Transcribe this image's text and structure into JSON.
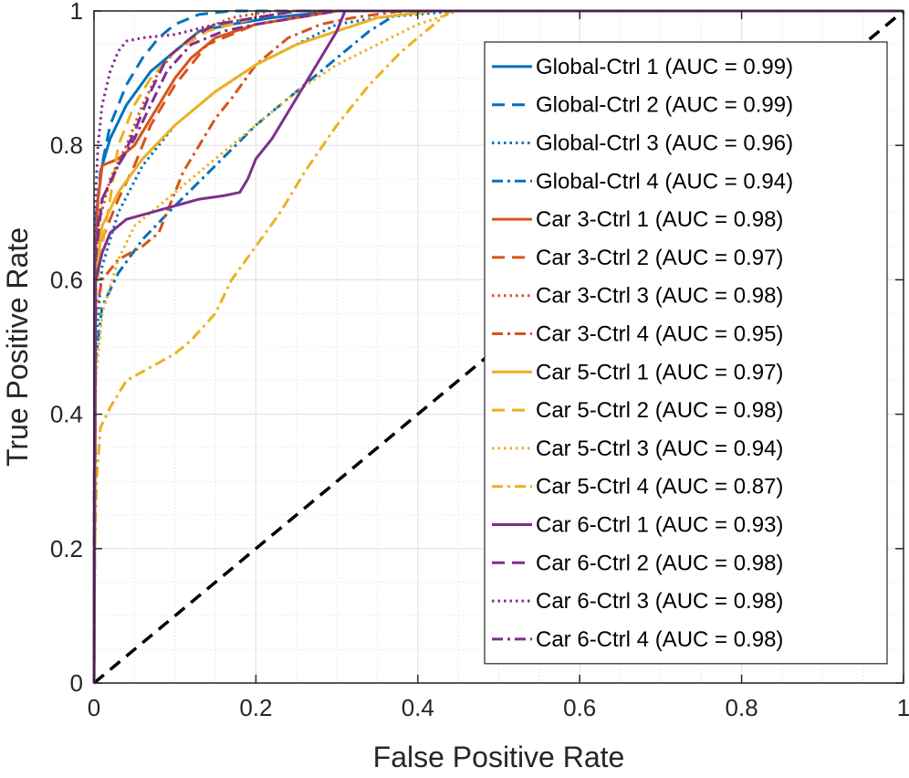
{
  "chart_data": {
    "type": "line",
    "title": "",
    "xlabel": "False Positive Rate",
    "ylabel": "True Positive Rate",
    "xlim": [
      0,
      1
    ],
    "ylim": [
      0,
      1
    ],
    "xticks": [
      0,
      0.2,
      0.4,
      0.6,
      0.8,
      1
    ],
    "xtick_labels": [
      "0",
      "0.2",
      "0.4",
      "0.6",
      "0.8",
      "1"
    ],
    "yticks": [
      0,
      0.2,
      0.4,
      0.6,
      0.8,
      1
    ],
    "ytick_labels": [
      "0",
      "0.2",
      "0.4",
      "0.6",
      "0.8",
      "1"
    ],
    "grid": true,
    "minor_grid": true,
    "legend_position": "top-right",
    "reference_line": {
      "name": "chance",
      "color": "#000000",
      "style": "dash",
      "points": [
        [
          0,
          0
        ],
        [
          1,
          1
        ]
      ]
    },
    "series": [
      {
        "name": "Global-Ctrl 1 (AUC = 0.99)",
        "color": "#0072BD",
        "style": "solid",
        "points": [
          [
            0,
            0
          ],
          [
            0.001,
            0.6
          ],
          [
            0.003,
            0.7
          ],
          [
            0.01,
            0.77
          ],
          [
            0.02,
            0.81
          ],
          [
            0.04,
            0.86
          ],
          [
            0.07,
            0.91
          ],
          [
            0.1,
            0.94
          ],
          [
            0.13,
            0.97
          ],
          [
            0.17,
            0.98
          ],
          [
            0.22,
            0.99
          ],
          [
            0.3,
            1.0
          ],
          [
            1,
            1
          ]
        ]
      },
      {
        "name": "Global-Ctrl 2 (AUC = 0.99)",
        "color": "#0072BD",
        "style": "dash",
        "points": [
          [
            0,
            0
          ],
          [
            0.001,
            0.6
          ],
          [
            0.003,
            0.7
          ],
          [
            0.008,
            0.76
          ],
          [
            0.02,
            0.83
          ],
          [
            0.04,
            0.89
          ],
          [
            0.06,
            0.93
          ],
          [
            0.08,
            0.96
          ],
          [
            0.1,
            0.98
          ],
          [
            0.13,
            0.995
          ],
          [
            0.17,
            1.0
          ],
          [
            1,
            1
          ]
        ]
      },
      {
        "name": "Global-Ctrl 3 (AUC = 0.96)",
        "color": "#0072BD",
        "style": "dot",
        "points": [
          [
            0,
            0
          ],
          [
            0.002,
            0.5
          ],
          [
            0.01,
            0.62
          ],
          [
            0.03,
            0.7
          ],
          [
            0.06,
            0.77
          ],
          [
            0.1,
            0.83
          ],
          [
            0.15,
            0.88
          ],
          [
            0.2,
            0.92
          ],
          [
            0.25,
            0.95
          ],
          [
            0.3,
            0.98
          ],
          [
            0.35,
            0.99
          ],
          [
            0.45,
            1.0
          ],
          [
            1,
            1
          ]
        ]
      },
      {
        "name": "Global-Ctrl 4 (AUC = 0.94)",
        "color": "#0072BD",
        "style": "dashdot",
        "points": [
          [
            0,
            0
          ],
          [
            0.002,
            0.48
          ],
          [
            0.01,
            0.56
          ],
          [
            0.03,
            0.61
          ],
          [
            0.06,
            0.66
          ],
          [
            0.1,
            0.71
          ],
          [
            0.15,
            0.77
          ],
          [
            0.2,
            0.83
          ],
          [
            0.25,
            0.88
          ],
          [
            0.3,
            0.93
          ],
          [
            0.34,
            0.97
          ],
          [
            0.38,
            1.0
          ],
          [
            1,
            1
          ]
        ]
      },
      {
        "name": "Car 3-Ctrl 1 (AUC = 0.98)",
        "color": "#D95319",
        "style": "solid",
        "points": [
          [
            0,
            0
          ],
          [
            0.001,
            0.62
          ],
          [
            0.005,
            0.72
          ],
          [
            0.01,
            0.77
          ],
          [
            0.03,
            0.78
          ],
          [
            0.05,
            0.8
          ],
          [
            0.08,
            0.86
          ],
          [
            0.1,
            0.9
          ],
          [
            0.12,
            0.93
          ],
          [
            0.15,
            0.96
          ],
          [
            0.2,
            0.98
          ],
          [
            0.25,
            0.99
          ],
          [
            0.3,
            1.0
          ],
          [
            1,
            1
          ]
        ]
      },
      {
        "name": "Car 3-Ctrl 2 (AUC = 0.97)",
        "color": "#D95319",
        "style": "dash",
        "points": [
          [
            0,
            0
          ],
          [
            0.002,
            0.6
          ],
          [
            0.01,
            0.66
          ],
          [
            0.03,
            0.72
          ],
          [
            0.05,
            0.77
          ],
          [
            0.07,
            0.83
          ],
          [
            0.1,
            0.89
          ],
          [
            0.14,
            0.95
          ],
          [
            0.2,
            0.98
          ],
          [
            0.25,
            0.99
          ],
          [
            0.3,
            1.0
          ],
          [
            1,
            1
          ]
        ]
      },
      {
        "name": "Car 3-Ctrl 3 (AUC = 0.98)",
        "color": "#D95319",
        "style": "dot",
        "points": [
          [
            0,
            0
          ],
          [
            0.001,
            0.58
          ],
          [
            0.005,
            0.68
          ],
          [
            0.02,
            0.75
          ],
          [
            0.04,
            0.8
          ],
          [
            0.06,
            0.86
          ],
          [
            0.08,
            0.91
          ],
          [
            0.1,
            0.94
          ],
          [
            0.13,
            0.97
          ],
          [
            0.17,
            0.99
          ],
          [
            0.22,
            1.0
          ],
          [
            1,
            1
          ]
        ]
      },
      {
        "name": "Car 3-Ctrl 4 (AUC = 0.95)",
        "color": "#D95319",
        "style": "dashdot",
        "points": [
          [
            0,
            0
          ],
          [
            0.002,
            0.55
          ],
          [
            0.01,
            0.6
          ],
          [
            0.03,
            0.63
          ],
          [
            0.06,
            0.65
          ],
          [
            0.08,
            0.67
          ],
          [
            0.09,
            0.7
          ],
          [
            0.11,
            0.76
          ],
          [
            0.13,
            0.8
          ],
          [
            0.15,
            0.84
          ],
          [
            0.17,
            0.87
          ],
          [
            0.2,
            0.92
          ],
          [
            0.24,
            0.96
          ],
          [
            0.28,
            0.98
          ],
          [
            0.32,
            0.99
          ],
          [
            0.38,
            1.0
          ],
          [
            1,
            1
          ]
        ]
      },
      {
        "name": "Car 5-Ctrl 1 (AUC = 0.97)",
        "color": "#EDB120",
        "style": "solid",
        "points": [
          [
            0,
            0
          ],
          [
            0.002,
            0.6
          ],
          [
            0.01,
            0.68
          ],
          [
            0.03,
            0.73
          ],
          [
            0.06,
            0.78
          ],
          [
            0.1,
            0.83
          ],
          [
            0.15,
            0.88
          ],
          [
            0.2,
            0.92
          ],
          [
            0.25,
            0.95
          ],
          [
            0.3,
            0.97
          ],
          [
            0.35,
            0.99
          ],
          [
            0.42,
            1.0
          ],
          [
            1,
            1
          ]
        ]
      },
      {
        "name": "Car 5-Ctrl 2 (AUC = 0.98)",
        "color": "#EDB120",
        "style": "dash",
        "points": [
          [
            0,
            0
          ],
          [
            0.002,
            0.58
          ],
          [
            0.01,
            0.65
          ],
          [
            0.02,
            0.72
          ],
          [
            0.03,
            0.8
          ],
          [
            0.05,
            0.86
          ],
          [
            0.07,
            0.9
          ],
          [
            0.1,
            0.94
          ],
          [
            0.14,
            0.97
          ],
          [
            0.2,
            0.99
          ],
          [
            0.25,
            1.0
          ],
          [
            1,
            1
          ]
        ]
      },
      {
        "name": "Car 5-Ctrl 3 (AUC = 0.94)",
        "color": "#EDB120",
        "style": "dot",
        "points": [
          [
            0,
            0
          ],
          [
            0.002,
            0.45
          ],
          [
            0.01,
            0.55
          ],
          [
            0.03,
            0.63
          ],
          [
            0.05,
            0.68
          ],
          [
            0.08,
            0.71
          ],
          [
            0.12,
            0.75
          ],
          [
            0.16,
            0.79
          ],
          [
            0.2,
            0.83
          ],
          [
            0.25,
            0.88
          ],
          [
            0.3,
            0.92
          ],
          [
            0.35,
            0.95
          ],
          [
            0.4,
            0.98
          ],
          [
            0.45,
            1.0
          ],
          [
            1,
            1
          ]
        ]
      },
      {
        "name": "Car 5-Ctrl 4 (AUC = 0.87)",
        "color": "#EDB120",
        "style": "dashdot",
        "points": [
          [
            0,
            0
          ],
          [
            0.001,
            0.2
          ],
          [
            0.003,
            0.3
          ],
          [
            0.008,
            0.38
          ],
          [
            0.02,
            0.41
          ],
          [
            0.04,
            0.45
          ],
          [
            0.07,
            0.47
          ],
          [
            0.1,
            0.49
          ],
          [
            0.12,
            0.51
          ],
          [
            0.15,
            0.55
          ],
          [
            0.17,
            0.6
          ],
          [
            0.2,
            0.65
          ],
          [
            0.23,
            0.7
          ],
          [
            0.26,
            0.76
          ],
          [
            0.3,
            0.83
          ],
          [
            0.34,
            0.89
          ],
          [
            0.38,
            0.94
          ],
          [
            0.42,
            0.98
          ],
          [
            0.44,
            1.0
          ],
          [
            1,
            1
          ]
        ]
      },
      {
        "name": "Car 6-Ctrl 1 (AUC = 0.93)",
        "color": "#7E2F8E",
        "style": "solid",
        "points": [
          [
            0,
            0
          ],
          [
            0.002,
            0.6
          ],
          [
            0.01,
            0.64
          ],
          [
            0.02,
            0.67
          ],
          [
            0.04,
            0.69
          ],
          [
            0.07,
            0.7
          ],
          [
            0.1,
            0.71
          ],
          [
            0.13,
            0.72
          ],
          [
            0.16,
            0.725
          ],
          [
            0.18,
            0.73
          ],
          [
            0.19,
            0.75
          ],
          [
            0.2,
            0.78
          ],
          [
            0.22,
            0.81
          ],
          [
            0.24,
            0.85
          ],
          [
            0.26,
            0.89
          ],
          [
            0.28,
            0.93
          ],
          [
            0.3,
            0.97
          ],
          [
            0.31,
            1.0
          ],
          [
            1,
            1
          ]
        ]
      },
      {
        "name": "Car 6-Ctrl 2 (AUC = 0.98)",
        "color": "#7E2F8E",
        "style": "dash",
        "points": [
          [
            0,
            0
          ],
          [
            0.001,
            0.62
          ],
          [
            0.01,
            0.72
          ],
          [
            0.03,
            0.77
          ],
          [
            0.05,
            0.82
          ],
          [
            0.07,
            0.88
          ],
          [
            0.09,
            0.93
          ],
          [
            0.12,
            0.96
          ],
          [
            0.15,
            0.98
          ],
          [
            0.2,
            0.99
          ],
          [
            0.25,
            1.0
          ],
          [
            1,
            1
          ]
        ]
      },
      {
        "name": "Car 6-Ctrl 3 (AUC = 0.98)",
        "color": "#7E2F8E",
        "style": "dot",
        "points": [
          [
            0,
            0
          ],
          [
            0.001,
            0.7
          ],
          [
            0.005,
            0.8
          ],
          [
            0.01,
            0.86
          ],
          [
            0.02,
            0.91
          ],
          [
            0.03,
            0.94
          ],
          [
            0.04,
            0.955
          ],
          [
            0.06,
            0.96
          ],
          [
            0.1,
            0.965
          ],
          [
            0.15,
            0.98
          ],
          [
            0.2,
            0.99
          ],
          [
            0.25,
            1.0
          ],
          [
            1,
            1
          ]
        ]
      },
      {
        "name": "Car 6-Ctrl 4 (AUC = 0.98)",
        "color": "#7E2F8E",
        "style": "dashdot",
        "points": [
          [
            0,
            0
          ],
          [
            0.001,
            0.65
          ],
          [
            0.01,
            0.72
          ],
          [
            0.03,
            0.77
          ],
          [
            0.05,
            0.81
          ],
          [
            0.07,
            0.86
          ],
          [
            0.09,
            0.91
          ],
          [
            0.12,
            0.95
          ],
          [
            0.16,
            0.97
          ],
          [
            0.2,
            0.98
          ],
          [
            0.25,
            0.99
          ],
          [
            0.3,
            1.0
          ],
          [
            1,
            1
          ]
        ]
      }
    ]
  }
}
